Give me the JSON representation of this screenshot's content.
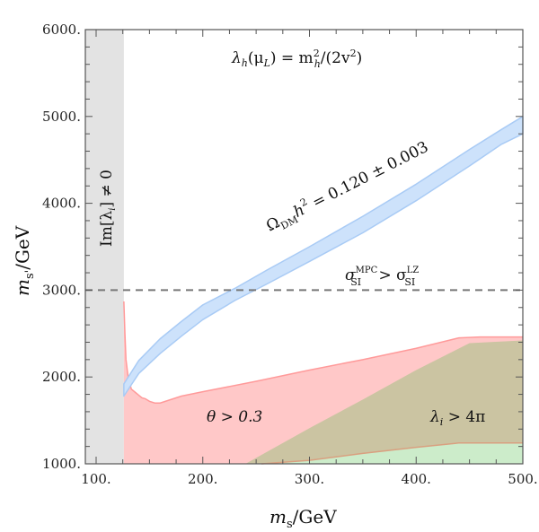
{
  "chart_data": {
    "type": "area",
    "title": "λ_h(μ_L) = m_h²/(2v²)",
    "xlabel": "m_s/GeV",
    "ylabel": "m_s'/GeV",
    "xlim": [
      90,
      500
    ],
    "ylim": [
      1000,
      6000
    ],
    "x_ticks": [
      100,
      200,
      300,
      400,
      500
    ],
    "x_tick_labels": [
      "100.",
      "200.",
      "300.",
      "400.",
      "500."
    ],
    "y_ticks": [
      1000,
      2000,
      3000,
      4000,
      5000,
      6000
    ],
    "y_tick_labels": [
      "1000.",
      "2000.",
      "3000.",
      "4000.",
      "5000.",
      "6000."
    ],
    "grid": false,
    "regions": [
      {
        "name": "Im[λ_i] ≠ 0",
        "color": "#e3e3e3",
        "x_range": [
          90,
          126
        ],
        "label": "Im[λ_i] ≠ 0"
      },
      {
        "name": "θ > 0.3",
        "color": "#ffc8c8",
        "edge": "#ff9a9a",
        "label": "θ > 0.3",
        "upper_boundary": [
          [
            126,
            2870
          ],
          [
            127,
            2500
          ],
          [
            128,
            2200
          ],
          [
            130,
            2000
          ],
          [
            133,
            1860
          ],
          [
            137,
            1820
          ],
          [
            140,
            1790
          ],
          [
            143,
            1760
          ],
          [
            146,
            1750
          ],
          [
            150,
            1720
          ],
          [
            155,
            1700
          ],
          [
            160,
            1700
          ],
          [
            170,
            1740
          ],
          [
            180,
            1780
          ],
          [
            200,
            1830
          ],
          [
            250,
            1950
          ],
          [
            300,
            2080
          ],
          [
            350,
            2200
          ],
          [
            400,
            2330
          ],
          [
            440,
            2450
          ],
          [
            460,
            2460
          ],
          [
            500,
            2460
          ]
        ]
      },
      {
        "name": "λ_i > 4π",
        "color": "#cbc4a2",
        "label": "λ_i > 4π",
        "upper_boundary": [
          [
            240,
            1000
          ],
          [
            300,
            1410
          ],
          [
            350,
            1740
          ],
          [
            400,
            2080
          ],
          [
            450,
            2390
          ],
          [
            500,
            2420
          ]
        ]
      },
      {
        "name": "allowed-green",
        "color": "#ccecca",
        "edge": "#d9a080",
        "upper_boundary": [
          [
            255,
            1000
          ],
          [
            300,
            1040
          ],
          [
            350,
            1120
          ],
          [
            400,
            1190
          ],
          [
            440,
            1240
          ],
          [
            500,
            1240
          ]
        ]
      }
    ],
    "series": [
      {
        "name": "Ω_DM h² = 0.120 ± 0.003",
        "color": "#cde2fb",
        "edge": "#a9cbf5",
        "upper": [
          [
            126,
            1920
          ],
          [
            140,
            2190
          ],
          [
            160,
            2440
          ],
          [
            180,
            2640
          ],
          [
            200,
            2830
          ],
          [
            230,
            3020
          ],
          [
            260,
            3230
          ],
          [
            300,
            3500
          ],
          [
            350,
            3850
          ],
          [
            400,
            4220
          ],
          [
            450,
            4620
          ],
          [
            480,
            4850
          ],
          [
            500,
            5000
          ]
        ],
        "lower": [
          [
            126,
            1780
          ],
          [
            140,
            2040
          ],
          [
            160,
            2270
          ],
          [
            180,
            2470
          ],
          [
            200,
            2660
          ],
          [
            230,
            2880
          ],
          [
            260,
            3070
          ],
          [
            300,
            3330
          ],
          [
            350,
            3660
          ],
          [
            400,
            4030
          ],
          [
            450,
            4430
          ],
          [
            480,
            4680
          ],
          [
            500,
            4800
          ]
        ]
      }
    ],
    "reference_lines": [
      {
        "name": "σ_SI^MPC > σ_SI^LZ",
        "y": 3000,
        "style": "dashed",
        "color": "#777777"
      }
    ],
    "annotations": [
      {
        "text": "λ_h(μ_L) = m_h²/(2v²)",
        "x": 300,
        "y": 5640
      },
      {
        "text": "Ω_DM h² = 0.120 ± 0.003",
        "x": 330,
        "y": 4200,
        "rotation": -27
      },
      {
        "text": "σ_SI^MPC > σ_SI^LZ",
        "x": 410,
        "y": 3230
      },
      {
        "text": "θ > 0.3",
        "x": 220,
        "y": 1560
      },
      {
        "text": "λ_i > 4π",
        "x": 440,
        "y": 1560
      },
      {
        "text": "Im[λ_i] ≠ 0",
        "x": 108,
        "y": 4000,
        "rotation": -90
      }
    ]
  },
  "labels": {
    "title_main": "λ",
    "title_sub_h": "h",
    "title_rest": "(μ",
    "title_sub_L": "L",
    "title_eq": ") = m",
    "title_sup2": "2",
    "title_sub_h2": "h",
    "title_tail": "/(2v",
    "title_sup2b": "2",
    "title_close": ")",
    "omega": "Ω",
    "omega_sub": "DM",
    "omega_h": "h",
    "omega_sup": "2",
    "omega_rest": " = 0.120 ± 0.003",
    "sigma": "σ",
    "sigma_sup1": "MPC",
    "sigma_sub1": "SI",
    "sigma_gt": " > σ",
    "sigma_sup2": "LZ",
    "sigma_sub2": "SI",
    "theta": "θ > 0.3",
    "lambda_i": "λ",
    "lambda_sub": "i",
    "lambda_rest": " > 4π",
    "im_label": "Im[λ",
    "im_sub": "i",
    "im_rest": "] ≠ 0",
    "xlabel_m": "m",
    "xlabel_sub": "s",
    "xlabel_rest": "/GeV",
    "ylabel_m": "m",
    "ylabel_sub": "s'",
    "ylabel_rest": "/GeV"
  }
}
